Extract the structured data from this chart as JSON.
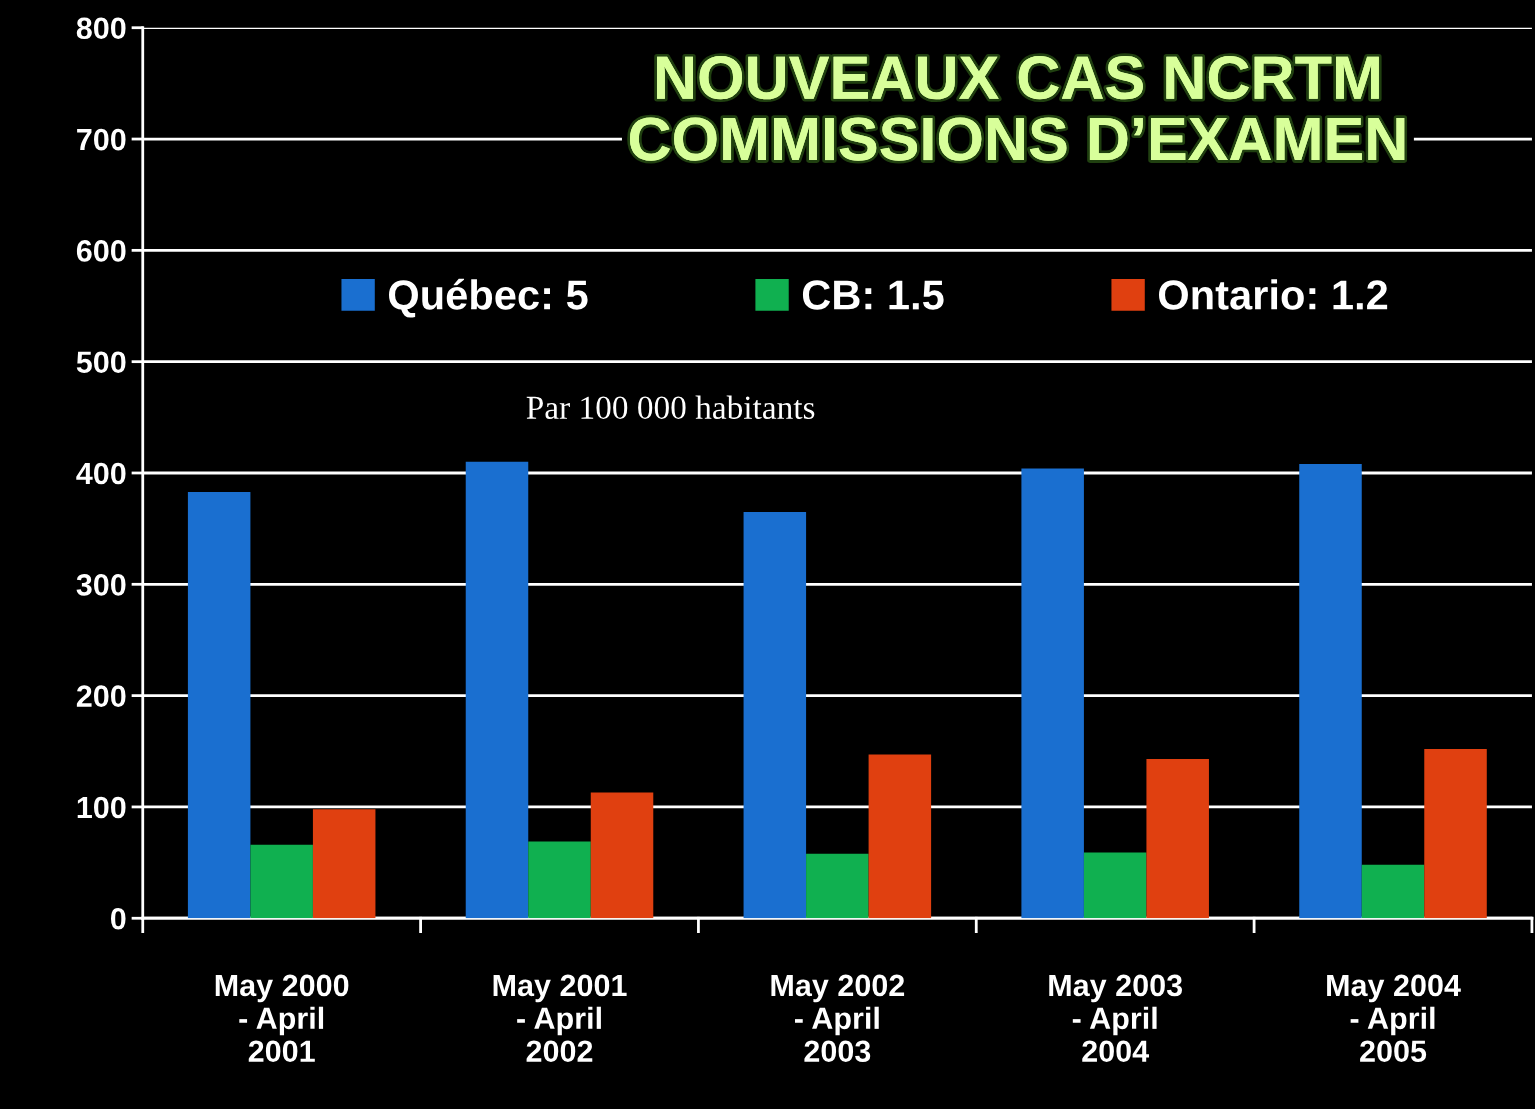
{
  "chart_data": {
    "type": "bar",
    "title": "NOUVEAUX CAS NCRTM\nCOMMISSIONS D’EXAMEN",
    "categories": [
      "May 2000\n- April\n2001",
      "May 2001\n- April\n2002",
      "May 2002\n- April\n2003",
      "May 2003\n- April\n2004",
      "May 2004\n- April\n2005"
    ],
    "series": [
      {
        "name": "Québec: 5",
        "color": "#1a6fd0",
        "values": [
          383,
          410,
          365,
          404,
          408
        ]
      },
      {
        "name": "CB: 1.5",
        "color": "#10b050",
        "values": [
          66,
          69,
          58,
          59,
          48
        ]
      },
      {
        "name": "Ontario: 1.2",
        "color": "#e04010",
        "values": [
          98,
          113,
          147,
          143,
          152
        ]
      }
    ],
    "annotations": [
      "Par 100 000 habitants"
    ],
    "ylim": [
      0,
      800
    ],
    "yticks": [
      0,
      100,
      200,
      300,
      400,
      500,
      600,
      700,
      800
    ],
    "grid": "y",
    "legend": "top"
  }
}
